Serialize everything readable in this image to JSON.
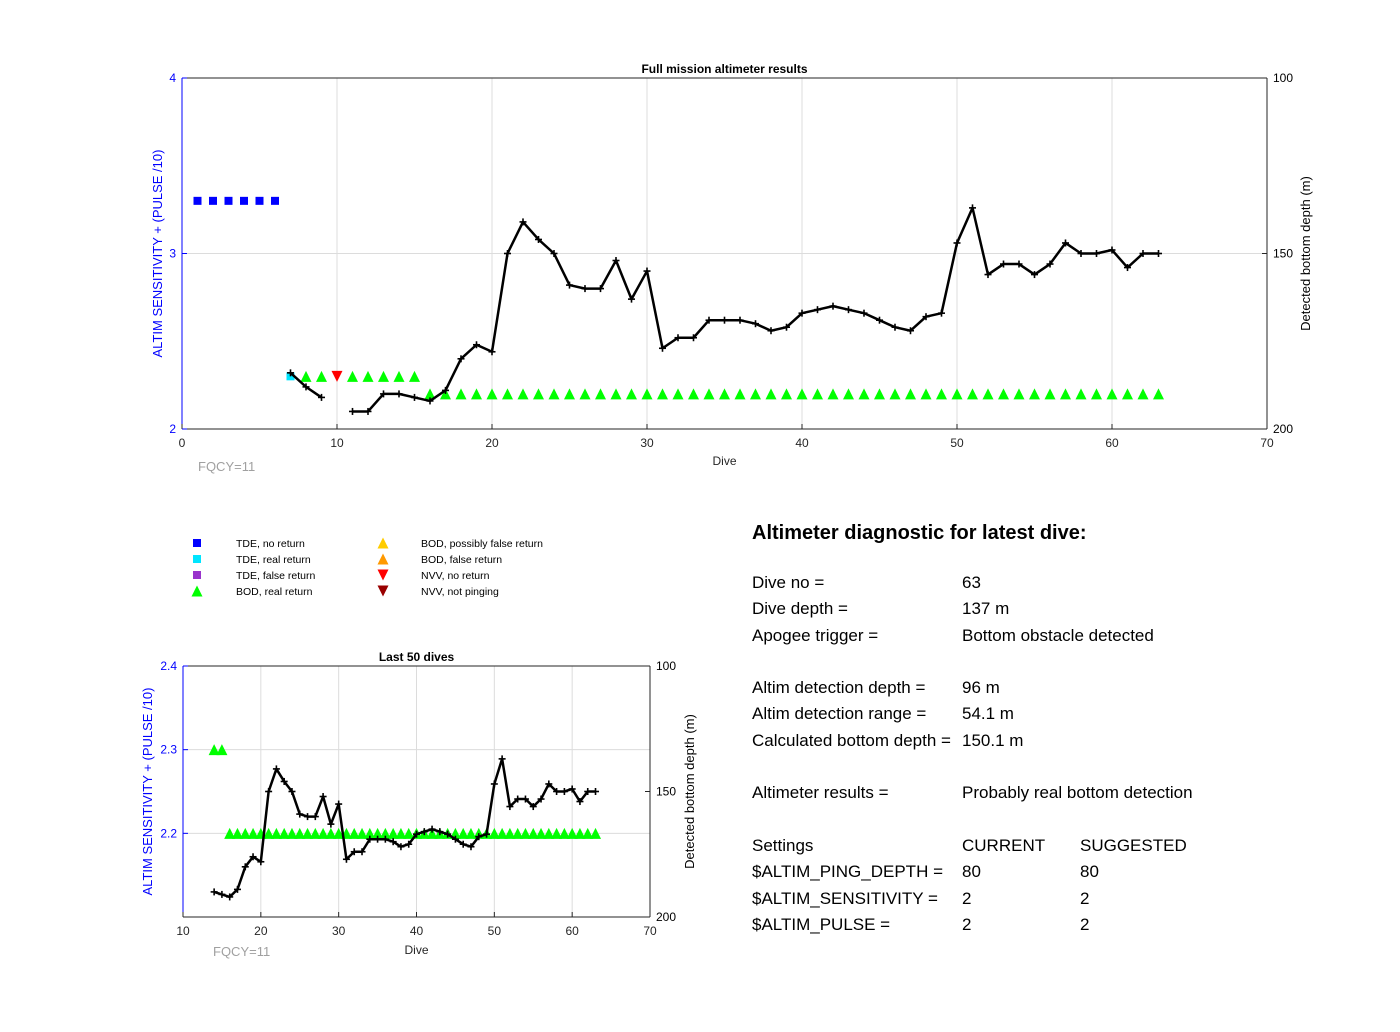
{
  "figure": {
    "colors": {
      "left_axis": "#0000ff",
      "fqcy": "#a0a0a0",
      "grid": "#dcdcdc",
      "line": "#000000"
    }
  },
  "chart_data": [
    {
      "type": "line",
      "title": "Full mission altimeter results",
      "xlabel": "Dive",
      "ylabel_left": "ALTIM SENSITIVITY + (PULSE /10)",
      "ylabel_right": "Detected bottom depth (m)",
      "xlim": [
        0,
        70
      ],
      "ylim_left": [
        2,
        4
      ],
      "ylim_right": [
        100,
        200
      ],
      "right_axis_reversed": true,
      "x_ticks": [
        "0",
        "10",
        "20",
        "30",
        "40",
        "50",
        "60",
        "70"
      ],
      "y_ticks_left": [
        "2",
        "3",
        "4"
      ],
      "y_ticks_right": [
        "100",
        "150",
        "200"
      ],
      "grid": true,
      "annotation": "FQCY=11",
      "markers": [
        {
          "name": "TDE, no return",
          "color": "#0000ff",
          "shape": "square",
          "points": [
            [
              1,
              3.3
            ],
            [
              2,
              3.3
            ],
            [
              3,
              3.3
            ],
            [
              4,
              3.3
            ],
            [
              5,
              3.3
            ],
            [
              6,
              3.3
            ]
          ]
        },
        {
          "name": "TDE, real return",
          "color": "#00e5ff",
          "shape": "square",
          "points": [
            [
              7,
              2.3
            ]
          ]
        },
        {
          "name": "BOD, real return",
          "color": "#00ff00",
          "shape": "triangle-up",
          "points": [
            [
              8,
              2.3
            ],
            [
              9,
              2.3
            ],
            [
              11,
              2.3
            ],
            [
              12,
              2.3
            ],
            [
              13,
              2.3
            ],
            [
              14,
              2.3
            ],
            [
              15,
              2.3
            ],
            [
              16,
              2.2
            ],
            [
              17,
              2.2
            ],
            [
              18,
              2.2
            ],
            [
              19,
              2.2
            ],
            [
              20,
              2.2
            ],
            [
              21,
              2.2
            ],
            [
              22,
              2.2
            ],
            [
              23,
              2.2
            ],
            [
              24,
              2.2
            ],
            [
              25,
              2.2
            ],
            [
              26,
              2.2
            ],
            [
              27,
              2.2
            ],
            [
              28,
              2.2
            ],
            [
              29,
              2.2
            ],
            [
              30,
              2.2
            ],
            [
              31,
              2.2
            ],
            [
              32,
              2.2
            ],
            [
              33,
              2.2
            ],
            [
              34,
              2.2
            ],
            [
              35,
              2.2
            ],
            [
              36,
              2.2
            ],
            [
              37,
              2.2
            ],
            [
              38,
              2.2
            ],
            [
              39,
              2.2
            ],
            [
              40,
              2.2
            ],
            [
              41,
              2.2
            ],
            [
              42,
              2.2
            ],
            [
              43,
              2.2
            ],
            [
              44,
              2.2
            ],
            [
              45,
              2.2
            ],
            [
              46,
              2.2
            ],
            [
              47,
              2.2
            ],
            [
              48,
              2.2
            ],
            [
              49,
              2.2
            ],
            [
              50,
              2.2
            ],
            [
              51,
              2.2
            ],
            [
              52,
              2.2
            ],
            [
              53,
              2.2
            ],
            [
              54,
              2.2
            ],
            [
              55,
              2.2
            ],
            [
              56,
              2.2
            ],
            [
              57,
              2.2
            ],
            [
              58,
              2.2
            ],
            [
              59,
              2.2
            ],
            [
              60,
              2.2
            ],
            [
              61,
              2.2
            ],
            [
              62,
              2.2
            ],
            [
              63,
              2.2
            ]
          ]
        },
        {
          "name": "NVV, no return",
          "color": "#ff0000",
          "shape": "triangle-down",
          "points": [
            [
              10,
              2.3
            ]
          ]
        }
      ],
      "depth_series": [
        [
          [
            7,
            184
          ],
          [
            8,
            188
          ],
          [
            9,
            191
          ]
        ],
        [
          [
            11,
            195
          ],
          [
            12,
            195
          ],
          [
            13,
            190
          ],
          [
            14,
            190
          ],
          [
            15,
            191
          ],
          [
            16,
            192
          ],
          [
            17,
            189
          ],
          [
            18,
            180
          ],
          [
            19,
            176
          ],
          [
            20,
            178
          ],
          [
            21,
            150
          ],
          [
            22,
            141
          ],
          [
            23,
            146
          ],
          [
            24,
            150
          ],
          [
            25,
            159
          ],
          [
            26,
            160
          ],
          [
            27,
            160
          ],
          [
            28,
            152
          ],
          [
            29,
            163
          ],
          [
            30,
            155
          ],
          [
            31,
            177
          ],
          [
            32,
            174
          ],
          [
            33,
            174
          ],
          [
            34,
            169
          ],
          [
            35,
            169
          ],
          [
            36,
            169
          ],
          [
            37,
            170
          ],
          [
            38,
            172
          ],
          [
            39,
            171
          ],
          [
            40,
            167
          ],
          [
            41,
            166
          ],
          [
            42,
            165
          ],
          [
            43,
            166
          ],
          [
            44,
            167
          ],
          [
            45,
            169
          ],
          [
            46,
            171
          ],
          [
            47,
            172
          ],
          [
            48,
            168
          ],
          [
            49,
            167
          ],
          [
            50,
            147
          ],
          [
            51,
            137
          ],
          [
            52,
            156
          ],
          [
            53,
            153
          ],
          [
            54,
            153
          ],
          [
            55,
            156
          ],
          [
            56,
            153
          ],
          [
            57,
            147
          ],
          [
            58,
            150
          ],
          [
            59,
            150
          ],
          [
            60,
            149
          ],
          [
            61,
            154
          ],
          [
            62,
            150
          ],
          [
            63,
            150
          ]
        ]
      ]
    },
    {
      "type": "line",
      "title": "Last 50 dives",
      "xlabel": "Dive",
      "ylabel_left": "ALTIM SENSITIVITY + (PULSE /10)",
      "ylabel_right": "Detected bottom depth (m)",
      "xlim": [
        10,
        70
      ],
      "ylim_left": [
        2.1,
        2.4
      ],
      "ylim_right": [
        100,
        200
      ],
      "right_axis_reversed": true,
      "x_ticks": [
        "10",
        "20",
        "30",
        "40",
        "50",
        "60",
        "70"
      ],
      "y_ticks_left": [
        "2.2",
        "2.3",
        "2.4"
      ],
      "y_ticks_right": [
        "100",
        "150",
        "200"
      ],
      "grid": true,
      "annotation": "FQCY=11",
      "markers": [
        {
          "name": "BOD, real return",
          "color": "#00ff00",
          "shape": "triangle-up",
          "points": [
            [
              14,
              2.3
            ],
            [
              15,
              2.3
            ],
            [
              16,
              2.2
            ],
            [
              17,
              2.2
            ],
            [
              18,
              2.2
            ],
            [
              19,
              2.2
            ],
            [
              20,
              2.2
            ],
            [
              21,
              2.2
            ],
            [
              22,
              2.2
            ],
            [
              23,
              2.2
            ],
            [
              24,
              2.2
            ],
            [
              25,
              2.2
            ],
            [
              26,
              2.2
            ],
            [
              27,
              2.2
            ],
            [
              28,
              2.2
            ],
            [
              29,
              2.2
            ],
            [
              30,
              2.2
            ],
            [
              31,
              2.2
            ],
            [
              32,
              2.2
            ],
            [
              33,
              2.2
            ],
            [
              34,
              2.2
            ],
            [
              35,
              2.2
            ],
            [
              36,
              2.2
            ],
            [
              37,
              2.2
            ],
            [
              38,
              2.2
            ],
            [
              39,
              2.2
            ],
            [
              40,
              2.2
            ],
            [
              41,
              2.2
            ],
            [
              42,
              2.2
            ],
            [
              43,
              2.2
            ],
            [
              44,
              2.2
            ],
            [
              45,
              2.2
            ],
            [
              46,
              2.2
            ],
            [
              47,
              2.2
            ],
            [
              48,
              2.2
            ],
            [
              49,
              2.2
            ],
            [
              50,
              2.2
            ],
            [
              51,
              2.2
            ],
            [
              52,
              2.2
            ],
            [
              53,
              2.2
            ],
            [
              54,
              2.2
            ],
            [
              55,
              2.2
            ],
            [
              56,
              2.2
            ],
            [
              57,
              2.2
            ],
            [
              58,
              2.2
            ],
            [
              59,
              2.2
            ],
            [
              60,
              2.2
            ],
            [
              61,
              2.2
            ],
            [
              62,
              2.2
            ],
            [
              63,
              2.2
            ]
          ]
        }
      ],
      "depth_series": [
        [
          [
            14,
            190
          ],
          [
            15,
            191
          ],
          [
            16,
            192
          ],
          [
            17,
            189
          ],
          [
            18,
            180
          ],
          [
            19,
            176
          ],
          [
            20,
            178
          ],
          [
            21,
            150
          ],
          [
            22,
            141
          ],
          [
            23,
            146
          ],
          [
            24,
            150
          ],
          [
            25,
            159
          ],
          [
            26,
            160
          ],
          [
            27,
            160
          ],
          [
            28,
            152
          ],
          [
            29,
            163
          ],
          [
            30,
            155
          ],
          [
            31,
            177
          ],
          [
            32,
            174
          ],
          [
            33,
            174
          ],
          [
            34,
            169
          ],
          [
            35,
            169
          ],
          [
            36,
            169
          ],
          [
            37,
            170
          ],
          [
            38,
            172
          ],
          [
            39,
            171
          ],
          [
            40,
            167
          ],
          [
            41,
            166
          ],
          [
            42,
            165
          ],
          [
            43,
            166
          ],
          [
            44,
            167
          ],
          [
            45,
            169
          ],
          [
            46,
            171
          ],
          [
            47,
            172
          ],
          [
            48,
            168
          ],
          [
            49,
            167
          ],
          [
            50,
            147
          ],
          [
            51,
            137
          ],
          [
            52,
            156
          ],
          [
            53,
            153
          ],
          [
            54,
            153
          ],
          [
            55,
            156
          ],
          [
            56,
            153
          ],
          [
            57,
            147
          ],
          [
            58,
            150
          ],
          [
            59,
            150
          ],
          [
            60,
            149
          ],
          [
            61,
            154
          ],
          [
            62,
            150
          ],
          [
            63,
            150
          ]
        ]
      ]
    }
  ],
  "legend": {
    "items": [
      {
        "label": "TDE, no return",
        "color": "#0000ff",
        "shape": "square"
      },
      {
        "label": "TDE, real return",
        "color": "#00e5ff",
        "shape": "square"
      },
      {
        "label": "TDE, false return",
        "color": "#9933cc",
        "shape": "square"
      },
      {
        "label": "BOD, real return",
        "color": "#00ff00",
        "shape": "triangle-up"
      },
      {
        "label": "BOD, possibly false return",
        "color": "#ffcc00",
        "shape": "triangle-up"
      },
      {
        "label": "BOD, false return",
        "color": "#ff9900",
        "shape": "triangle-up"
      },
      {
        "label": "NVV, no return",
        "color": "#ff0000",
        "shape": "triangle-down"
      },
      {
        "label": "NVV, not pinging",
        "color": "#990000",
        "shape": "triangle-down"
      }
    ]
  },
  "diagnostic": {
    "title": "Altimeter diagnostic for latest dive:",
    "dive_no": {
      "label": "Dive no =",
      "value": "63"
    },
    "dive_depth": {
      "label": "Dive depth =",
      "value": "137 m"
    },
    "apogee_trigger": {
      "label": "Apogee trigger =",
      "value": "Bottom obstacle detected"
    },
    "altim_detection_depth": {
      "label": "Altim detection depth =",
      "value": "96 m"
    },
    "altim_detection_range": {
      "label": "Altim detection range =",
      "value": "54.1 m"
    },
    "calculated_bottom_depth": {
      "label": "Calculated bottom depth =",
      "value": "150.1 m"
    },
    "altimeter_results": {
      "label": "Altimeter results =",
      "value": "Probably real bottom detection"
    },
    "settings": {
      "header": {
        "label": "Settings",
        "current": "CURRENT",
        "suggested": "SUGGESTED"
      },
      "rows": [
        {
          "label": "$ALTIM_PING_DEPTH =",
          "current": "80",
          "suggested": "80"
        },
        {
          "label": "$ALTIM_SENSITIVITY =",
          "current": "2",
          "suggested": "2"
        },
        {
          "label": "$ALTIM_PULSE =",
          "current": "2",
          "suggested": "2"
        }
      ]
    }
  }
}
